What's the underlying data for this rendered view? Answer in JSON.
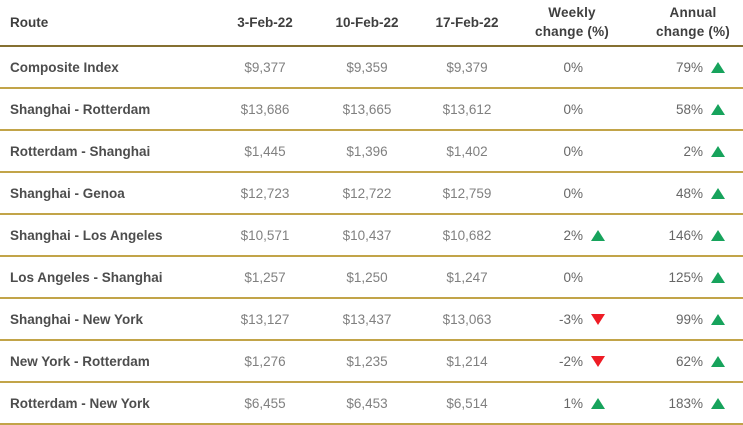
{
  "table": {
    "header": {
      "route": "Route",
      "dates": [
        "3-Feb-22",
        "10-Feb-22",
        "17-Feb-22"
      ],
      "weekly_line1": "Weekly",
      "weekly_line2": "change (%)",
      "annual_line1": "Annual",
      "annual_line2": "change (%)"
    },
    "rows": [
      {
        "route": "Composite Index",
        "values": [
          "$9,377",
          "$9,359",
          "$9,379"
        ],
        "weekly": {
          "pct": "0%",
          "dir": "none"
        },
        "annual": {
          "pct": "79%",
          "dir": "up"
        }
      },
      {
        "route": "Shanghai - Rotterdam",
        "values": [
          "$13,686",
          "$13,665",
          "$13,612"
        ],
        "weekly": {
          "pct": "0%",
          "dir": "none"
        },
        "annual": {
          "pct": "58%",
          "dir": "up"
        }
      },
      {
        "route": "Rotterdam - Shanghai",
        "values": [
          "$1,445",
          "$1,396",
          "$1,402"
        ],
        "weekly": {
          "pct": "0%",
          "dir": "none"
        },
        "annual": {
          "pct": "2%",
          "dir": "up"
        }
      },
      {
        "route": "Shanghai - Genoa",
        "values": [
          "$12,723",
          "$12,722",
          "$12,759"
        ],
        "weekly": {
          "pct": "0%",
          "dir": "none"
        },
        "annual": {
          "pct": "48%",
          "dir": "up"
        }
      },
      {
        "route": "Shanghai - Los Angeles",
        "values": [
          "$10,571",
          "$10,437",
          "$10,682"
        ],
        "weekly": {
          "pct": "2%",
          "dir": "up"
        },
        "annual": {
          "pct": "146%",
          "dir": "up"
        }
      },
      {
        "route": "Los Angeles - Shanghai",
        "values": [
          "$1,257",
          "$1,250",
          "$1,247"
        ],
        "weekly": {
          "pct": "0%",
          "dir": "none"
        },
        "annual": {
          "pct": "125%",
          "dir": "up"
        }
      },
      {
        "route": "Shanghai - New York",
        "values": [
          "$13,127",
          "$13,437",
          "$13,063"
        ],
        "weekly": {
          "pct": "-3%",
          "dir": "down"
        },
        "annual": {
          "pct": "99%",
          "dir": "up"
        }
      },
      {
        "route": "New York - Rotterdam",
        "values": [
          "$1,276",
          "$1,235",
          "$1,214"
        ],
        "weekly": {
          "pct": "-2%",
          "dir": "down"
        },
        "annual": {
          "pct": "62%",
          "dir": "up"
        }
      },
      {
        "route": "Rotterdam - New York",
        "values": [
          "$6,455",
          "$6,453",
          "$6,514"
        ],
        "weekly": {
          "pct": "1%",
          "dir": "up"
        },
        "annual": {
          "pct": "183%",
          "dir": "up"
        }
      }
    ]
  },
  "colors": {
    "up_triangle": "#17a35c",
    "down_triangle": "#ee1c25",
    "header_line": "#857031",
    "row_line": "#c2a449"
  }
}
